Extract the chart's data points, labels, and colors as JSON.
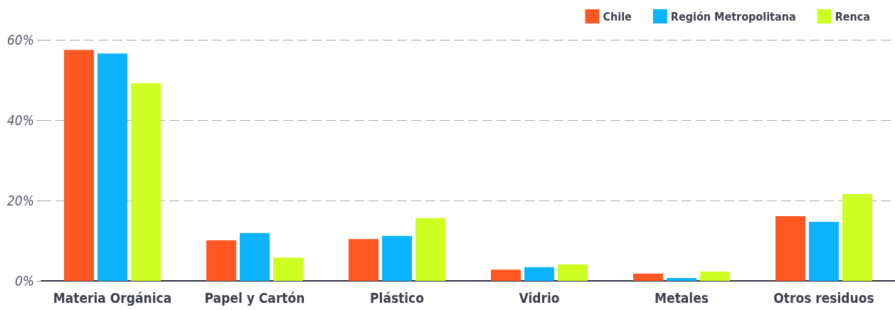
{
  "chart_data": {
    "type": "bar",
    "categories": [
      "Materia Orgánica",
      "Papel y Cartón",
      "Plástico",
      "Vidrio",
      "Metales",
      "Otros residuos"
    ],
    "series": [
      {
        "name": "Chile",
        "color": "#ff5722",
        "values": [
          57.5,
          10.1,
          10.4,
          2.8,
          1.8,
          16.1
        ]
      },
      {
        "name": "Región Metropolitana",
        "color": "#0bb4fc",
        "values": [
          56.6,
          11.9,
          11.2,
          3.4,
          0.7,
          14.7
        ]
      },
      {
        "name": "Renca",
        "color": "#cdff22",
        "values": [
          49.2,
          5.8,
          15.6,
          4.1,
          2.3,
          21.6
        ]
      }
    ],
    "ylim": [
      0,
      60
    ],
    "yticks": [
      {
        "value": 0,
        "label": "0%"
      },
      {
        "value": 20,
        "label": "20%"
      },
      {
        "value": 40,
        "label": "40%"
      },
      {
        "value": 60,
        "label": "60%"
      }
    ],
    "grid": "y",
    "legend": "top right"
  }
}
